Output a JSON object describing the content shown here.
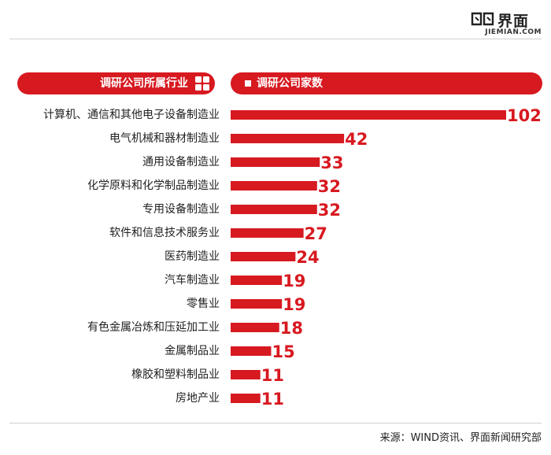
{
  "brand": {
    "name_cn": "界面",
    "name_en": "JIEMIAN.COM",
    "accent_color": "#d71920"
  },
  "header": {
    "industry_label": "调研公司所属行业",
    "count_label": "调研公司家数"
  },
  "chart_data": {
    "type": "bar",
    "orientation": "horizontal",
    "title": "",
    "xlabel": "调研公司家数",
    "ylabel": "调研公司所属行业",
    "categories": [
      "计算机、通信和其他电子设备制造业",
      "电气机械和器材制造业",
      "通用设备制造业",
      "化学原料和化学制品制造业",
      "专用设备制造业",
      "软件和信息技术服务业",
      "医药制造业",
      "汽车制造业",
      "零售业",
      "有色金属冶炼和压延加工业",
      "金属制品业",
      "橡胶和塑料制品业",
      "房地产业"
    ],
    "values": [
      102,
      42,
      33,
      32,
      32,
      27,
      24,
      19,
      19,
      18,
      15,
      11,
      11
    ],
    "xlim": [
      0,
      102
    ],
    "grid": false,
    "bar_color": "#d71920"
  },
  "footer": {
    "source": "来源：WIND资讯、界面新闻研究部"
  }
}
